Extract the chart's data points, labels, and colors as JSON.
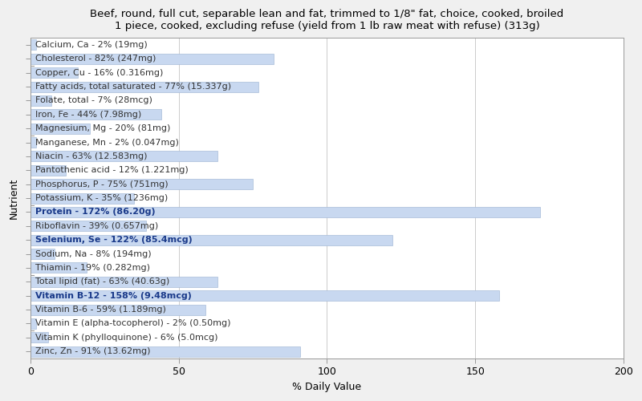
{
  "title": "Beef, round, full cut, separable lean and fat, trimmed to 1/8\" fat, choice, cooked, broiled\n1 piece, cooked, excluding refuse (yield from 1 lb raw meat with refuse) (313g)",
  "xlabel": "% Daily Value",
  "ylabel": "Nutrient",
  "xlim": [
    0,
    200
  ],
  "xticks": [
    0,
    50,
    100,
    150,
    200
  ],
  "nutrients": [
    "Calcium, Ca - 2% (19mg)",
    "Cholesterol - 82% (247mg)",
    "Copper, Cu - 16% (0.316mg)",
    "Fatty acids, total saturated - 77% (15.337g)",
    "Folate, total - 7% (28mcg)",
    "Iron, Fe - 44% (7.98mg)",
    "Magnesium, Mg - 20% (81mg)",
    "Manganese, Mn - 2% (0.047mg)",
    "Niacin - 63% (12.583mg)",
    "Pantothenic acid - 12% (1.221mg)",
    "Phosphorus, P - 75% (751mg)",
    "Potassium, K - 35% (1236mg)",
    "Protein - 172% (86.20g)",
    "Riboflavin - 39% (0.657mg)",
    "Selenium, Se - 122% (85.4mcg)",
    "Sodium, Na - 8% (194mg)",
    "Thiamin - 19% (0.282mg)",
    "Total lipid (fat) - 63% (40.63g)",
    "Vitamin B-12 - 158% (9.48mcg)",
    "Vitamin B-6 - 59% (1.189mg)",
    "Vitamin E (alpha-tocopherol) - 2% (0.50mg)",
    "Vitamin K (phylloquinone) - 6% (5.0mcg)",
    "Zinc, Zn - 91% (13.62mg)"
  ],
  "values": [
    2,
    82,
    16,
    77,
    7,
    44,
    20,
    2,
    63,
    12,
    75,
    35,
    172,
    39,
    122,
    8,
    19,
    63,
    158,
    59,
    2,
    6,
    91
  ],
  "bar_color": "#c8d8f0",
  "bar_edge_color": "#a8bcd8",
  "text_color_default": "#333333",
  "text_color_highlight": "#1a3a8a",
  "highlight_indices": [
    12,
    14,
    18
  ],
  "background_color": "#f0f0f0",
  "plot_bg_color": "#ffffff",
  "title_fontsize": 9.5,
  "axis_label_fontsize": 9,
  "tick_fontsize": 9,
  "bar_label_fontsize": 8,
  "figsize": [
    8.0,
    5.0
  ],
  "dpi": 100,
  "group_ticks": [
    1.5,
    6.5,
    11.5,
    16.5,
    20.5
  ]
}
